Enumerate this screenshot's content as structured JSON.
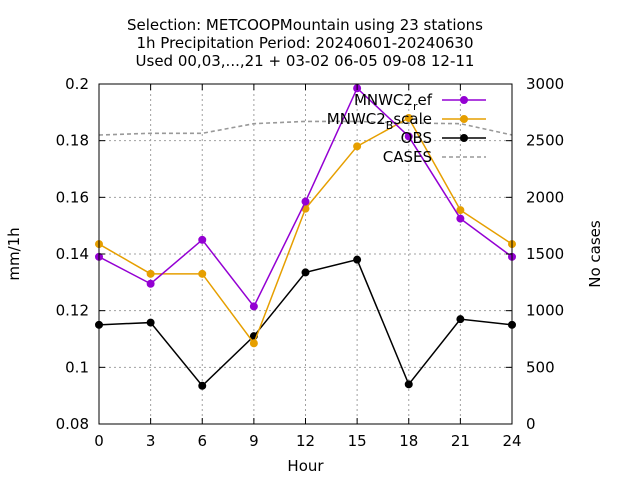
{
  "chart_data": {
    "type": "line",
    "title_lines": [
      "Selection: METCOOPMountain using    23 stations",
      "1h Precipitation   Period: 20240601-20240630",
      "Used 00,03,...,21 + 03-02 06-05 09-08 12-11"
    ],
    "xlabel": "Hour",
    "ylabel": "mm/1h",
    "y2label": "No cases",
    "x": [
      0,
      3,
      6,
      9,
      12,
      15,
      18,
      21,
      24
    ],
    "xlim": [
      0,
      24
    ],
    "xticks": [
      0,
      3,
      6,
      9,
      12,
      15,
      18,
      21,
      24
    ],
    "ylim": [
      0.08,
      0.2
    ],
    "yticks": [
      0.08,
      0.1,
      0.12,
      0.14,
      0.16,
      0.18,
      0.2
    ],
    "y2lim": [
      0,
      3000
    ],
    "y2ticks": [
      0,
      500,
      1000,
      1500,
      2000,
      2500,
      3000
    ],
    "grid": true,
    "legend_position": "top-right",
    "series": [
      {
        "name": "MNWC2_ref",
        "legend_main": "MNWC2",
        "legend_sub": "r",
        "legend_rest": "ef",
        "color": "#9400d3",
        "axis": "y",
        "marker": "filled-circle",
        "values": [
          0.139,
          0.1295,
          0.145,
          0.1215,
          0.1585,
          0.1985,
          0.1815,
          0.1525,
          0.139
        ]
      },
      {
        "name": "MNWC2_Bscale",
        "legend_main": "MNWC2",
        "legend_sub": "B",
        "legend_rest": "scale",
        "color": "#e69f00",
        "axis": "y",
        "marker": "filled-circle",
        "values": [
          0.1435,
          0.133,
          0.133,
          0.1085,
          0.156,
          0.178,
          0.188,
          0.1555,
          0.1435
        ]
      },
      {
        "name": "OBS",
        "legend_main": "OBS",
        "legend_sub": "",
        "legend_rest": "",
        "color": "#000000",
        "axis": "y",
        "marker": "filled-circle",
        "values": [
          0.115,
          0.1158,
          0.0935,
          0.111,
          0.1335,
          0.138,
          0.094,
          0.117,
          0.115
        ]
      },
      {
        "name": "CASES",
        "legend_main": "CASES",
        "legend_sub": "",
        "legend_rest": "",
        "color": "#999999",
        "axis": "y2",
        "marker": "none",
        "dashed": true,
        "values": [
          2550,
          2565,
          2565,
          2650,
          2670,
          2670,
          2655,
          2650,
          2550
        ]
      }
    ]
  }
}
